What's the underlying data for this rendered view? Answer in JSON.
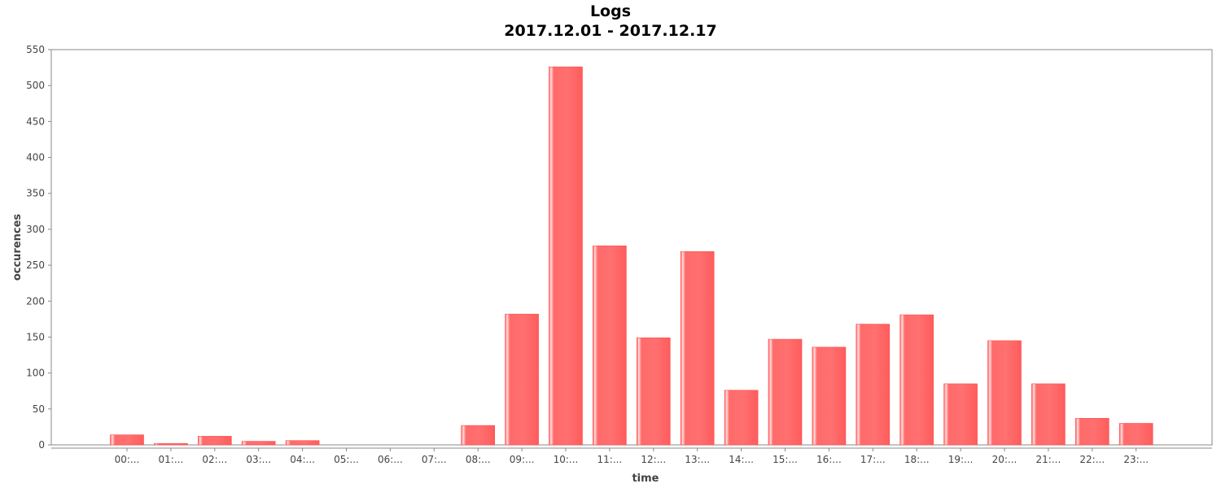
{
  "chart_data": {
    "type": "bar",
    "title": "Logs",
    "subtitle": "2017.12.01 - 2017.12.17",
    "xlabel": "time",
    "ylabel": "occurences",
    "categories": [
      "00:...",
      "01:...",
      "02:...",
      "03:...",
      "04:...",
      "05:...",
      "06:...",
      "07:...",
      "08:...",
      "09:...",
      "10:...",
      "11:...",
      "12:...",
      "13:...",
      "14:...",
      "15:...",
      "16:...",
      "17:...",
      "18:...",
      "19:...",
      "20:...",
      "21:...",
      "22:...",
      "23:..."
    ],
    "values": [
      14,
      2,
      12,
      5,
      6,
      0,
      0,
      0,
      27,
      182,
      526,
      277,
      149,
      269,
      76,
      147,
      136,
      168,
      181,
      85,
      145,
      85,
      37,
      30
    ],
    "ylim": [
      0,
      550
    ],
    "yticks": [
      0,
      50,
      100,
      150,
      200,
      250,
      300,
      350,
      400,
      450,
      500,
      550
    ],
    "grid": false,
    "legend": "none",
    "bar_color": "#ff6a6a"
  }
}
